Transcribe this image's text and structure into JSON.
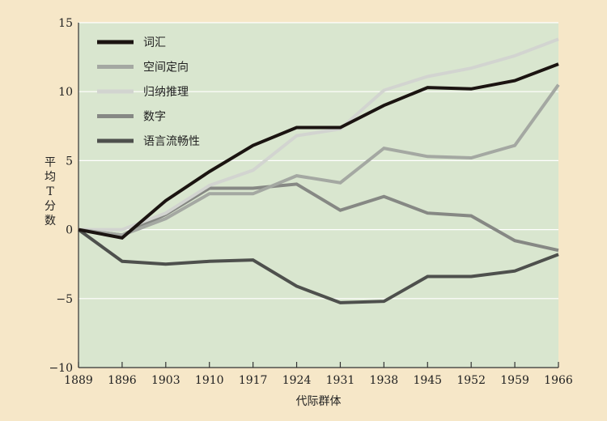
{
  "chart_data": {
    "type": "line",
    "xlabel": "代际群体",
    "ylabel": "平均T分数",
    "x": [
      1889,
      1896,
      1903,
      1910,
      1917,
      1924,
      1931,
      1938,
      1945,
      1952,
      1959,
      1966
    ],
    "ylim": [
      -10,
      15
    ],
    "yticks": [
      -10,
      -5,
      0,
      5,
      10,
      15
    ],
    "ytick_labels": [
      "−10",
      "−5",
      "0",
      "5",
      "10",
      "15"
    ],
    "grid": "horizontal",
    "legend_position": "top-left",
    "background_color": "#d9e6cf",
    "page_color": "#f6e7c8",
    "series": [
      {
        "name": "词汇",
        "color": "#1b1411",
        "width": 4,
        "values": [
          0,
          -0.6,
          2.1,
          4.2,
          6.1,
          7.4,
          7.4,
          9.0,
          10.3,
          10.2,
          10.8,
          12.0
        ]
      },
      {
        "name": "空间定向",
        "color": "#a4a8a2",
        "width": 4,
        "values": [
          0,
          -0.4,
          0.8,
          2.6,
          2.6,
          3.9,
          3.4,
          5.9,
          5.3,
          5.2,
          6.1,
          10.5
        ]
      },
      {
        "name": "归纳推理",
        "color": "#d2d4d0",
        "width": 4,
        "values": [
          0,
          0,
          1.2,
          3.2,
          4.3,
          6.8,
          7.3,
          10.1,
          11.1,
          11.7,
          12.6,
          13.8
        ]
      },
      {
        "name": "数字",
        "color": "#868884",
        "width": 4,
        "values": [
          0,
          -0.4,
          1.1,
          3.0,
          3.0,
          3.3,
          1.4,
          2.4,
          1.2,
          1.0,
          -0.8,
          -1.5
        ]
      },
      {
        "name": "语言流畅性",
        "color": "#4e504d",
        "width": 4,
        "values": [
          0,
          -2.3,
          -2.5,
          -2.3,
          -2.2,
          -4.1,
          -5.3,
          -5.2,
          -3.4,
          -3.4,
          -3.0,
          -1.8
        ]
      }
    ]
  }
}
